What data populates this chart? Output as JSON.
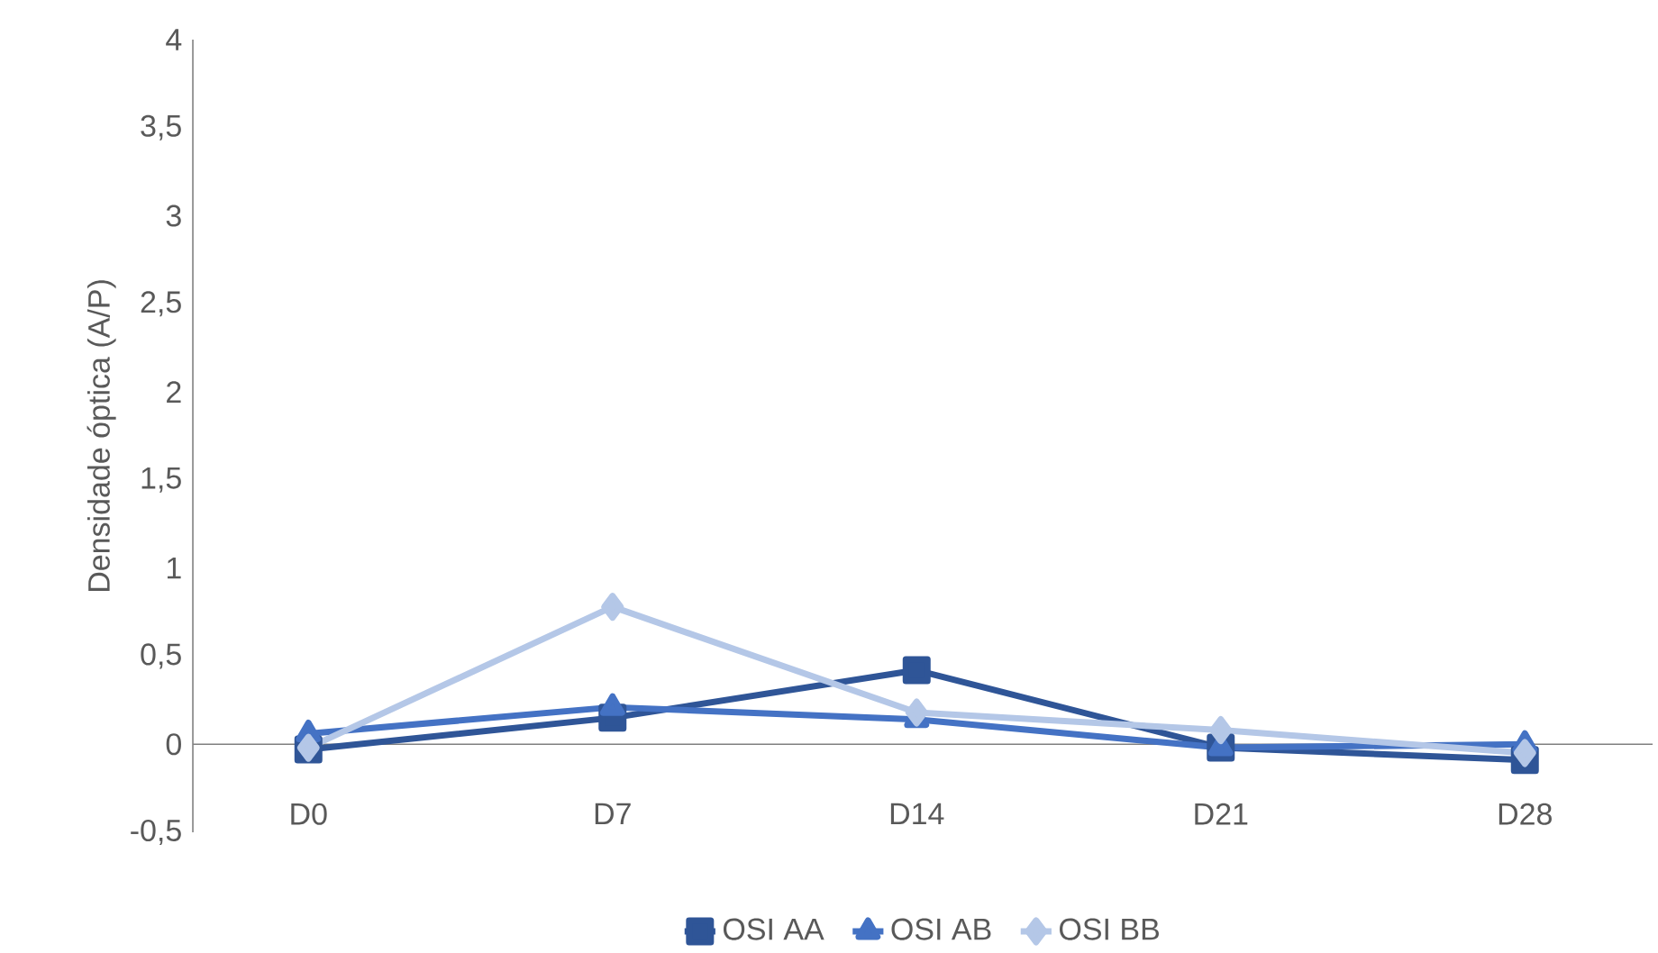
{
  "chart_data": {
    "type": "line",
    "ylabel": "Densidade óptica (A/P)",
    "categories": [
      "D0",
      "D7",
      "D14",
      "D21",
      "D28"
    ],
    "series": [
      {
        "name": "OSI  AA",
        "color": "#2f5597",
        "marker": "square",
        "values": [
          -0.03,
          0.15,
          0.42,
          -0.02,
          -0.09
        ]
      },
      {
        "name": "OSI  AB",
        "color": "#4472c4",
        "marker": "triangle",
        "values": [
          0.06,
          0.21,
          0.14,
          -0.02,
          0.0
        ]
      },
      {
        "name": "OSI  BB",
        "color": "#b4c7e7",
        "marker": "diamond",
        "values": [
          -0.02,
          0.78,
          0.18,
          0.08,
          -0.05
        ]
      }
    ],
    "ylim": [
      -0.5,
      4
    ],
    "yticks": [
      {
        "value": -0.5,
        "label": "-0,5"
      },
      0,
      {
        "value": 0.5,
        "label": "0,5"
      },
      1,
      {
        "value": 1.5,
        "label": "1,5"
      },
      2,
      {
        "value": 2.5,
        "label": "2,5"
      },
      3,
      {
        "value": 3.5,
        "label": "3,5"
      },
      4
    ],
    "grid": false,
    "legend": "bottom",
    "line_style": "solid"
  }
}
